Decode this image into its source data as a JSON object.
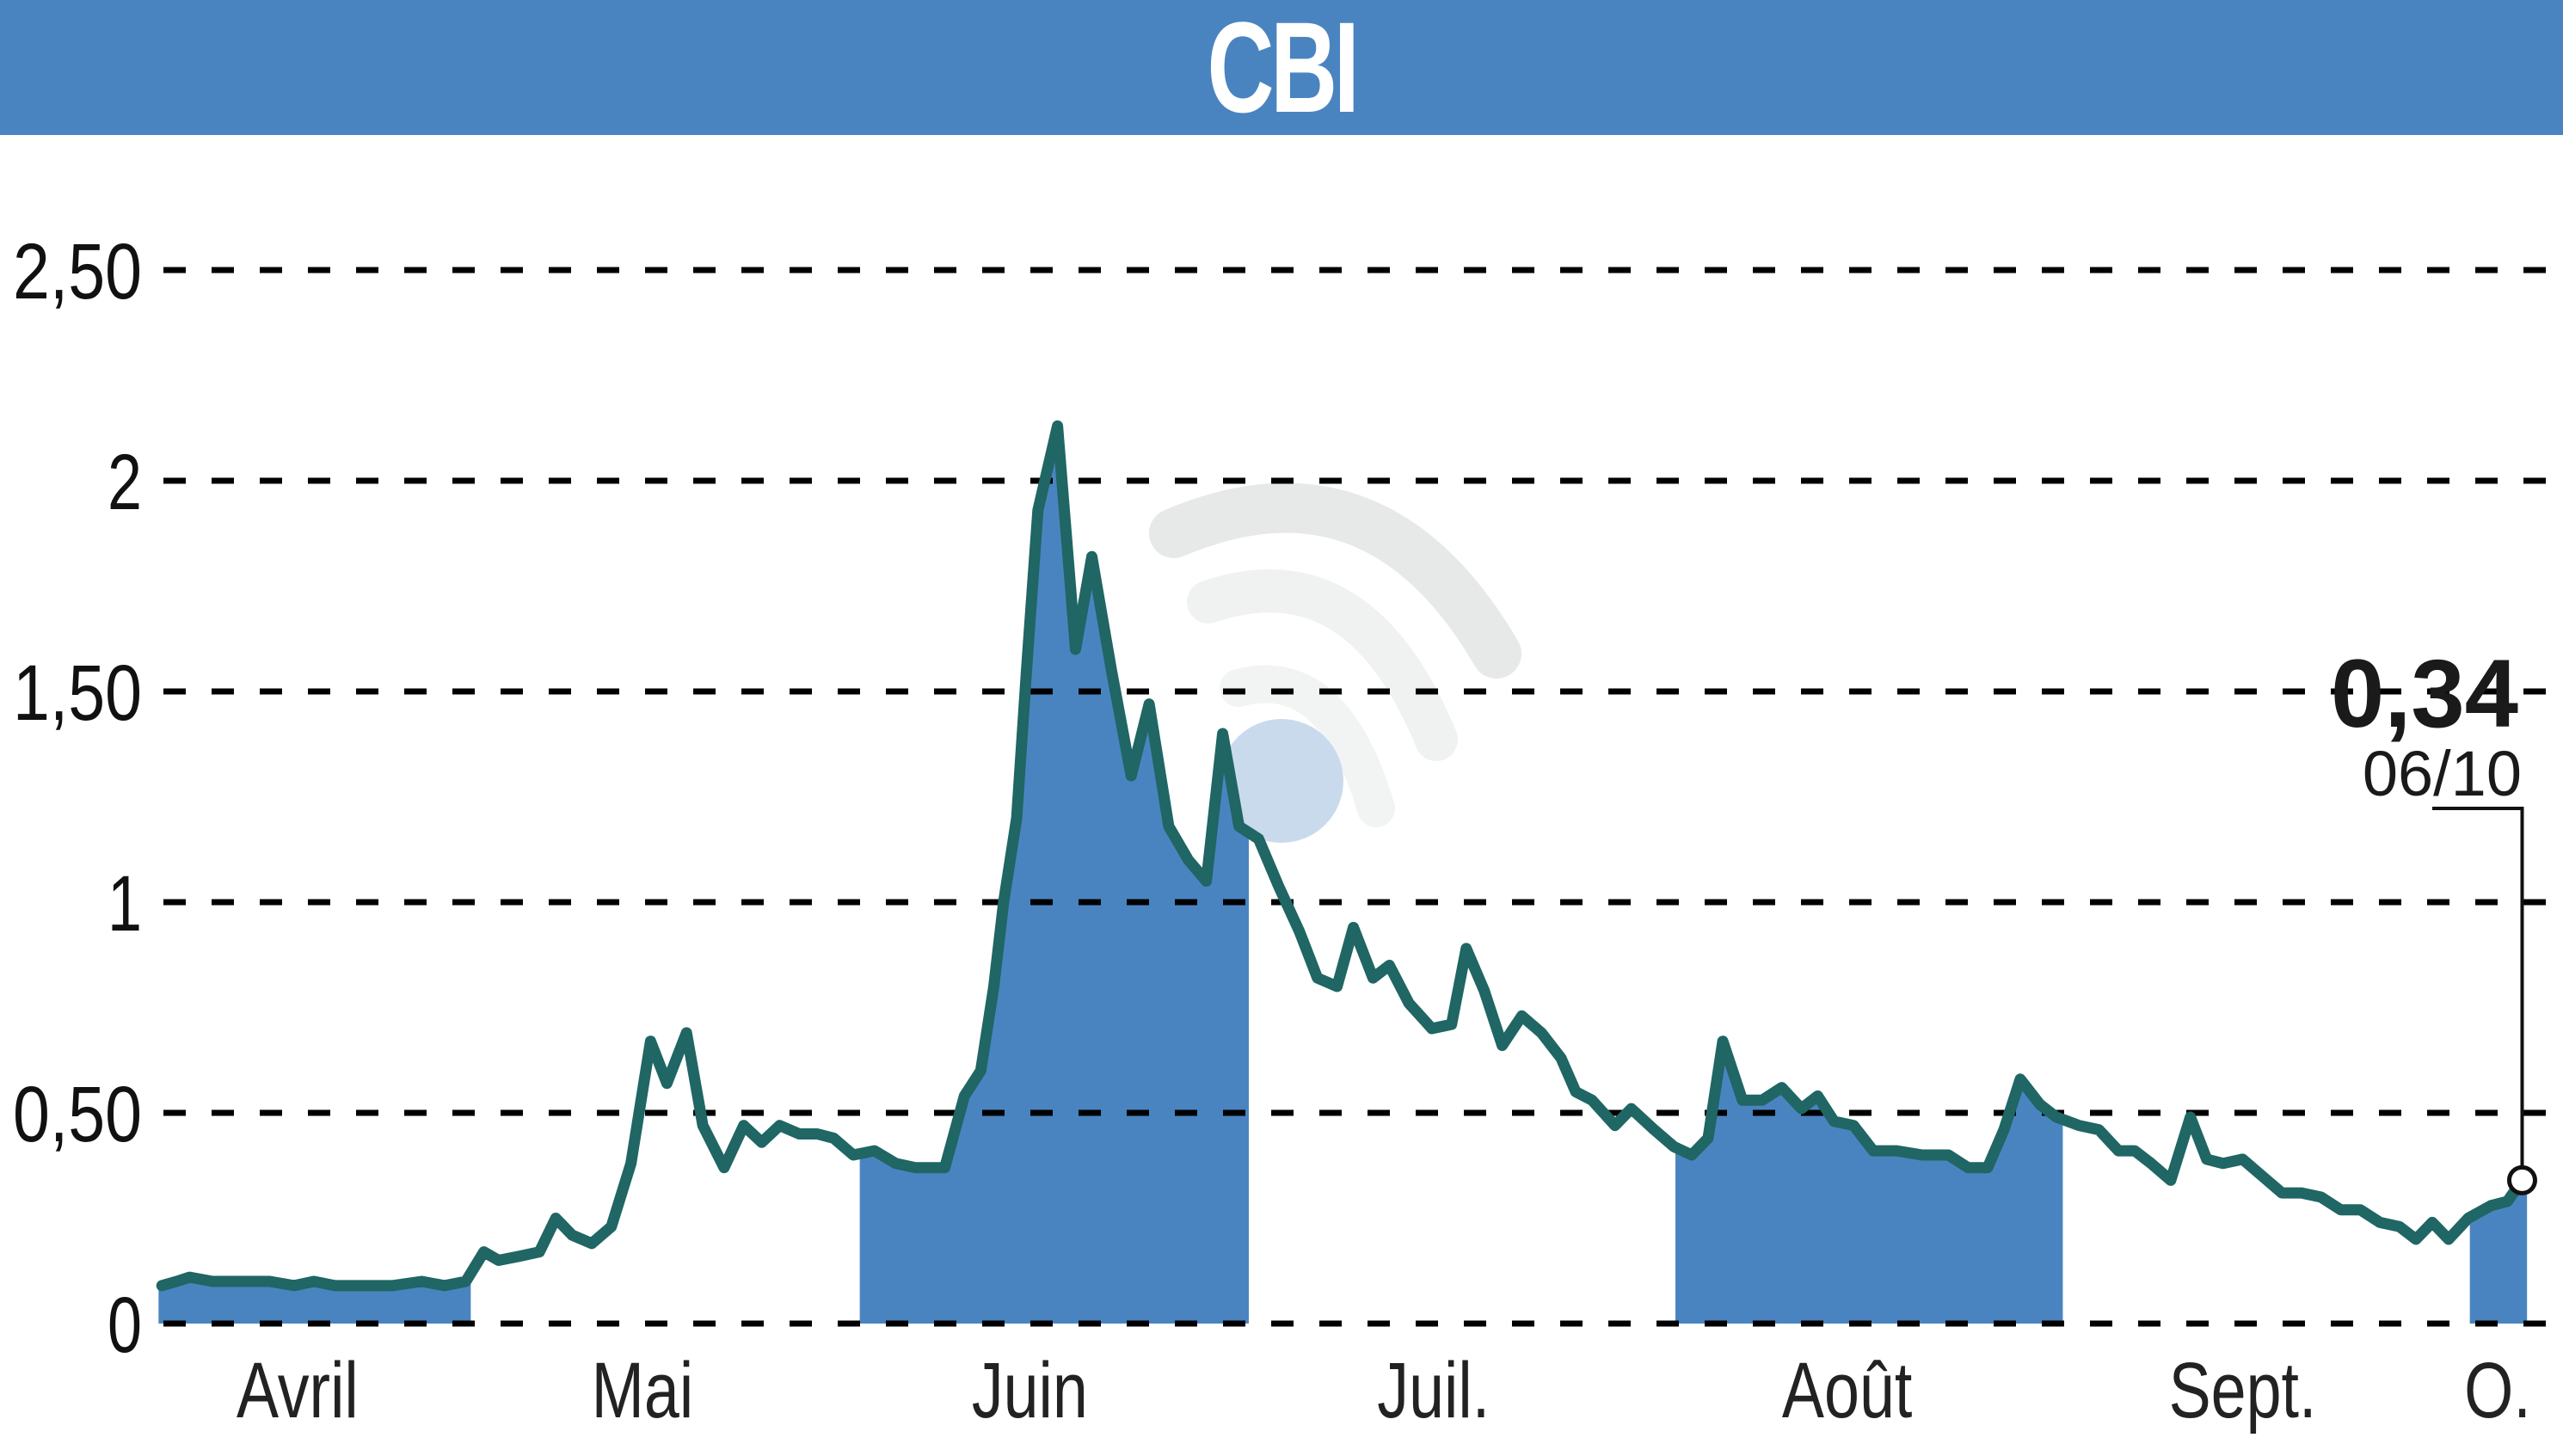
{
  "header": {
    "title": "CBI",
    "background_color": "#4a84c0",
    "text_color": "#ffffff"
  },
  "colors": {
    "line": "#1f6664",
    "fill": "#4a84c0",
    "grid": "#000000",
    "watermark": "#c9d9ec"
  },
  "last_value": {
    "value_label": "0,34",
    "date_label": "06/10"
  },
  "chart_data": {
    "type": "line",
    "title": "CBI",
    "xlabel": "",
    "ylabel": "",
    "ylim": [
      0,
      2.5
    ],
    "grid": true,
    "legend": null,
    "y_ticks": [
      {
        "value": 0,
        "label": "0"
      },
      {
        "value": 0.5,
        "label": "0,50"
      },
      {
        "value": 1,
        "label": "1"
      },
      {
        "value": 1.5,
        "label": "1,50"
      },
      {
        "value": 2,
        "label": "2"
      },
      {
        "value": 2.5,
        "label": "2,50"
      }
    ],
    "x_ticks": [
      {
        "label": "Avril",
        "x": 182
      },
      {
        "label": "Mai",
        "x": 393
      },
      {
        "label": "Juin",
        "x": 630
      },
      {
        "label": "Juil.",
        "x": 877
      },
      {
        "label": "Août",
        "x": 1130
      },
      {
        "label": "Sept.",
        "x": 1372
      },
      {
        "label": "O.",
        "x": 1528
      }
    ],
    "shaded_months": [
      {
        "label": "Avril",
        "x0": 97,
        "x1": 288
      },
      {
        "label": "Juin",
        "x0": 526,
        "x1": 764
      },
      {
        "label": "Août",
        "x0": 1025,
        "x1": 1262
      },
      {
        "label": "O.",
        "x0": 1511,
        "x1": 1546
      }
    ],
    "annotation": {
      "text": "0,34",
      "sub": "06/10",
      "x": 1543,
      "value": 0.34
    },
    "x_unit": "preview-px (0-1568)",
    "points": [
      [
        99,
        0.09
      ],
      [
        108,
        0.1
      ],
      [
        116,
        0.11
      ],
      [
        130,
        0.1
      ],
      [
        150,
        0.1
      ],
      [
        165,
        0.1
      ],
      [
        180,
        0.09
      ],
      [
        192,
        0.1
      ],
      [
        205,
        0.09
      ],
      [
        220,
        0.09
      ],
      [
        240,
        0.09
      ],
      [
        258,
        0.1
      ],
      [
        272,
        0.09
      ],
      [
        285,
        0.1
      ],
      [
        296,
        0.17
      ],
      [
        305,
        0.15
      ],
      [
        318,
        0.16
      ],
      [
        330,
        0.17
      ],
      [
        340,
        0.25
      ],
      [
        350,
        0.21
      ],
      [
        362,
        0.19
      ],
      [
        374,
        0.23
      ],
      [
        386,
        0.38
      ],
      [
        398,
        0.67
      ],
      [
        408,
        0.57
      ],
      [
        420,
        0.69
      ],
      [
        430,
        0.47
      ],
      [
        443,
        0.37
      ],
      [
        455,
        0.47
      ],
      [
        466,
        0.43
      ],
      [
        477,
        0.47
      ],
      [
        489,
        0.45
      ],
      [
        500,
        0.45
      ],
      [
        510,
        0.44
      ],
      [
        522,
        0.4
      ],
      [
        535,
        0.41
      ],
      [
        548,
        0.38
      ],
      [
        560,
        0.37
      ],
      [
        578,
        0.37
      ],
      [
        590,
        0.54
      ],
      [
        600,
        0.6
      ],
      [
        608,
        0.8
      ],
      [
        614,
        1.0
      ],
      [
        622,
        1.2
      ],
      [
        628,
        1.55
      ],
      [
        635,
        1.93
      ],
      [
        647,
        2.13
      ],
      [
        658,
        1.6
      ],
      [
        668,
        1.82
      ],
      [
        680,
        1.55
      ],
      [
        692,
        1.3
      ],
      [
        703,
        1.47
      ],
      [
        715,
        1.18
      ],
      [
        727,
        1.1
      ],
      [
        738,
        1.05
      ],
      [
        748,
        1.4
      ],
      [
        758,
        1.18
      ],
      [
        770,
        1.15
      ],
      [
        782,
        1.04
      ],
      [
        795,
        0.93
      ],
      [
        806,
        0.82
      ],
      [
        818,
        0.8
      ],
      [
        828,
        0.94
      ],
      [
        840,
        0.82
      ],
      [
        850,
        0.85
      ],
      [
        862,
        0.76
      ],
      [
        876,
        0.7
      ],
      [
        888,
        0.71
      ],
      [
        897,
        0.89
      ],
      [
        908,
        0.79
      ],
      [
        919,
        0.66
      ],
      [
        931,
        0.73
      ],
      [
        943,
        0.69
      ],
      [
        955,
        0.63
      ],
      [
        964,
        0.55
      ],
      [
        974,
        0.53
      ],
      [
        988,
        0.47
      ],
      [
        998,
        0.51
      ],
      [
        1012,
        0.46
      ],
      [
        1024,
        0.42
      ],
      [
        1035,
        0.4
      ],
      [
        1045,
        0.44
      ],
      [
        1054,
        0.67
      ],
      [
        1066,
        0.53
      ],
      [
        1078,
        0.53
      ],
      [
        1090,
        0.56
      ],
      [
        1102,
        0.51
      ],
      [
        1112,
        0.54
      ],
      [
        1122,
        0.48
      ],
      [
        1134,
        0.47
      ],
      [
        1146,
        0.41
      ],
      [
        1160,
        0.41
      ],
      [
        1176,
        0.4
      ],
      [
        1192,
        0.4
      ],
      [
        1204,
        0.37
      ],
      [
        1216,
        0.37
      ],
      [
        1226,
        0.46
      ],
      [
        1236,
        0.58
      ],
      [
        1248,
        0.52
      ],
      [
        1258,
        0.49
      ],
      [
        1272,
        0.47
      ],
      [
        1284,
        0.46
      ],
      [
        1296,
        0.41
      ],
      [
        1306,
        0.41
      ],
      [
        1316,
        0.38
      ],
      [
        1328,
        0.34
      ],
      [
        1340,
        0.49
      ],
      [
        1350,
        0.39
      ],
      [
        1360,
        0.38
      ],
      [
        1372,
        0.39
      ],
      [
        1384,
        0.35
      ],
      [
        1396,
        0.31
      ],
      [
        1408,
        0.31
      ],
      [
        1420,
        0.3
      ],
      [
        1432,
        0.27
      ],
      [
        1444,
        0.27
      ],
      [
        1456,
        0.24
      ],
      [
        1468,
        0.23
      ],
      [
        1478,
        0.2
      ],
      [
        1488,
        0.24
      ],
      [
        1498,
        0.2
      ],
      [
        1510,
        0.25
      ],
      [
        1524,
        0.28
      ],
      [
        1534,
        0.29
      ],
      [
        1543,
        0.34
      ]
    ]
  }
}
